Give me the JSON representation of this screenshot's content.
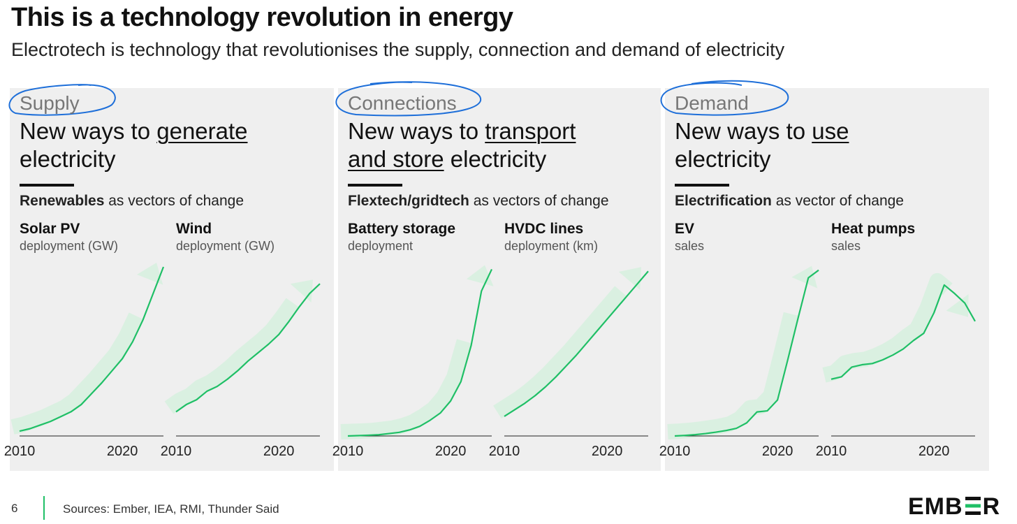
{
  "title": "This is a technology revolution in energy",
  "subtitle": "Electrotech is technology that revolutionises the supply, connection and demand of electricity",
  "colors": {
    "line": "#1fbf66",
    "arrow": "#c9f0d6",
    "circle": "#1e6fd9",
    "panel": "#efefef"
  },
  "panels": [
    {
      "category": "Supply",
      "head_pre": "New ways to ",
      "head_u1": "generate",
      "head_post": "electricity",
      "vector_bold": "Renewables",
      "vector_rest": " as vectors of change",
      "charts": [
        {
          "title": "Solar PV",
          "sub": "deployment (GW)"
        },
        {
          "title": "Wind",
          "sub": "deployment (GW)"
        }
      ]
    },
    {
      "category": "Connections",
      "head_pre": "New ways to ",
      "head_u1": "transport",
      "head_u2": "and store",
      "head_post": " electricity",
      "vector_bold": "Flextech/gridtech",
      "vector_rest": " as vectors of change",
      "charts": [
        {
          "title": "Battery storage",
          "sub": "deployment"
        },
        {
          "title": "HVDC lines",
          "sub": "deployment (km)"
        }
      ]
    },
    {
      "category": "Demand",
      "head_pre": "New ways to ",
      "head_u1": "use",
      "head_post": "electricity",
      "vector_bold": "Electrification",
      "vector_rest": " as vector of change",
      "charts": [
        {
          "title": "EV",
          "sub": "sales"
        },
        {
          "title": "Heat pumps",
          "sub": "sales"
        }
      ]
    }
  ],
  "chart_data": [
    {
      "type": "line",
      "title": "Solar PV",
      "ylabel": "deployment (GW)",
      "x": [
        2010,
        2011,
        2012,
        2013,
        2014,
        2015,
        2016,
        2017,
        2018,
        2019,
        2020,
        2021,
        2022,
        2023,
        2024
      ],
      "values": [
        4,
        6,
        9,
        12,
        16,
        20,
        26,
        35,
        44,
        54,
        64,
        78,
        96,
        118,
        140
      ],
      "ylim": [
        0,
        140
      ],
      "tick_labels": [
        "2010",
        "2020"
      ]
    },
    {
      "type": "line",
      "title": "Wind",
      "ylabel": "deployment (GW)",
      "x": [
        2010,
        2011,
        2012,
        2013,
        2014,
        2015,
        2016,
        2017,
        2018,
        2019,
        2020,
        2021,
        2022,
        2023,
        2024
      ],
      "values": [
        20,
        26,
        30,
        37,
        41,
        47,
        54,
        62,
        69,
        76,
        84,
        95,
        107,
        118,
        126
      ],
      "ylim": [
        0,
        140
      ],
      "tick_labels": [
        "2010",
        "2020"
      ]
    },
    {
      "type": "line",
      "title": "Battery storage",
      "ylabel": "deployment",
      "x": [
        2010,
        2011,
        2012,
        2013,
        2014,
        2015,
        2016,
        2017,
        2018,
        2019,
        2020,
        2021,
        2022,
        2023,
        2024
      ],
      "values": [
        0,
        0.3,
        0.6,
        1,
        2,
        3,
        5,
        8,
        13,
        19,
        29,
        45,
        75,
        120,
        138
      ],
      "ylim": [
        0,
        140
      ],
      "tick_labels": [
        "2010",
        "2020"
      ]
    },
    {
      "type": "line",
      "title": "HVDC lines",
      "ylabel": "deployment (km)",
      "x": [
        2010,
        2011,
        2012,
        2013,
        2014,
        2015,
        2016,
        2017,
        2018,
        2019,
        2020,
        2021,
        2022,
        2023,
        2024
      ],
      "values": [
        18,
        24,
        30,
        37,
        45,
        54,
        64,
        74,
        85,
        96,
        107,
        118,
        129,
        140,
        151
      ],
      "ylim": [
        0,
        155
      ],
      "tick_labels": [
        "2010",
        "2020"
      ]
    },
    {
      "type": "line",
      "title": "EV",
      "ylabel": "sales",
      "x": [
        2010,
        2011,
        2012,
        2013,
        2014,
        2015,
        2016,
        2017,
        2018,
        2019,
        2020,
        2021,
        2022,
        2023,
        2024
      ],
      "values": [
        0,
        0.5,
        1.2,
        2.2,
        3.5,
        5,
        7,
        12,
        22,
        23,
        33,
        70,
        108,
        145,
        152
      ],
      "ylim": [
        0,
        155
      ],
      "tick_labels": [
        "2010",
        "2020"
      ]
    },
    {
      "type": "line",
      "title": "Heat pumps",
      "ylabel": "sales",
      "x": [
        2010,
        2011,
        2012,
        2013,
        2014,
        2015,
        2016,
        2017,
        2018,
        2019,
        2020,
        2021,
        2022,
        2023,
        2024
      ],
      "values": [
        47,
        49,
        57,
        59,
        60,
        63,
        67,
        72,
        79,
        85,
        102,
        125,
        118,
        110,
        95
      ],
      "ylim": [
        0,
        140
      ],
      "tick_labels": [
        "2010",
        "2020"
      ]
    }
  ],
  "footer": {
    "page": "6",
    "sources": "Sources: Ember, IEA, RMI, Thunder Said"
  },
  "logo": {
    "pre": "EMB",
    "post": "R"
  }
}
